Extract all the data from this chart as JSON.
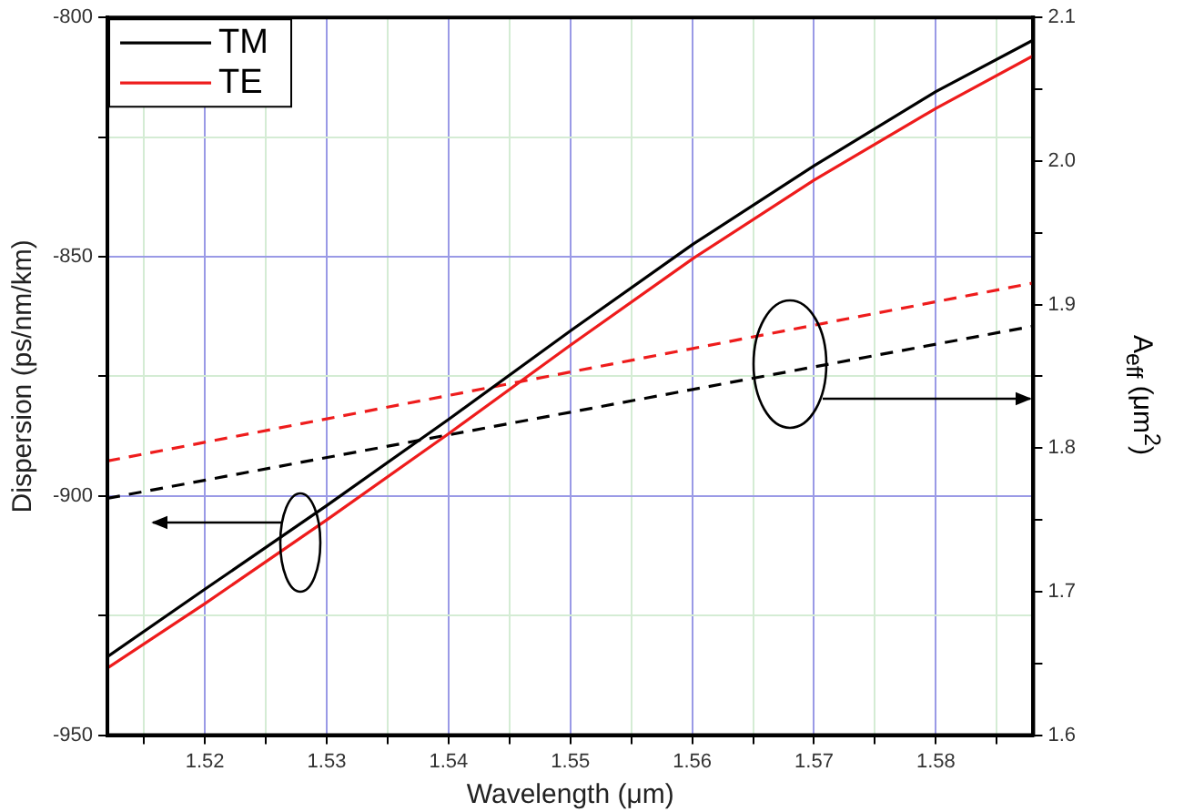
{
  "chart_data": {
    "type": "line",
    "xlabel": "Wavelength (μm)",
    "ylabel": "Dispersion (ps/nm/km)",
    "y2label": "A$_{eff}$ (μm$^{2}$)",
    "xlim": [
      1.512,
      1.588
    ],
    "xticks": [
      {
        "value": 1.515,
        "label": null
      },
      1.52,
      {
        "value": 1.525,
        "label": null
      },
      1.53,
      {
        "value": 1.535,
        "label": null
      },
      1.54,
      {
        "value": 1.545,
        "label": null
      },
      1.55,
      {
        "value": 1.555,
        "label": null
      },
      1.56,
      {
        "value": 1.565,
        "label": null
      },
      1.57,
      {
        "value": 1.575,
        "label": null
      },
      1.58,
      {
        "value": 1.585,
        "label": null
      }
    ],
    "ylim": [
      -950,
      -800
    ],
    "yticks": [
      -950,
      {
        "value": -925,
        "label": null
      },
      -900,
      {
        "value": -875,
        "label": null
      },
      -850,
      {
        "value": -825,
        "label": null
      },
      -800
    ],
    "y2lim": [
      1.6,
      2.1
    ],
    "y2ticks": [
      1.6,
      {
        "value": 1.65,
        "label": null
      },
      1.7,
      {
        "value": 1.75,
        "label": null
      },
      1.8,
      {
        "value": 1.85,
        "label": null
      },
      1.9,
      {
        "value": 1.95,
        "label": null
      },
      {
        "value": 2,
        "label": "2.0"
      },
      {
        "value": 2.05,
        "label": null
      },
      2.1
    ],
    "grid": true,
    "legend": "top left",
    "marker": "none",
    "series": [
      {
        "name": "TM",
        "color": "#000000",
        "line_style": "solid",
        "x": [
          1.512,
          1.52,
          1.53,
          1.54,
          1.55,
          1.56,
          1.57,
          1.58,
          1.588
        ],
        "values": [
          -933.6,
          -919.5,
          -902,
          -884,
          -865.5,
          -847.5,
          -831,
          -815.5,
          -804.7
        ]
      },
      {
        "name": "TE",
        "color": "#ee1c1c",
        "line_style": "solid",
        "x": [
          1.512,
          1.52,
          1.53,
          1.54,
          1.55,
          1.56,
          1.57,
          1.58,
          1.588
        ],
        "values": [
          -936,
          -922.5,
          -905,
          -887,
          -868.5,
          -850.5,
          -834,
          -819,
          -808
        ]
      },
      {
        "color": "#ee1c1c",
        "line_style": "dashed",
        "axis": "y2",
        "x": [
          1.512,
          1.55,
          1.588
        ],
        "values": [
          1.791,
          1.853,
          1.915
        ]
      },
      {
        "color": "#000000",
        "line_style": "dashed",
        "axis": "y2",
        "x": [
          1.512,
          1.55,
          1.588
        ],
        "values": [
          1.765,
          1.825,
          1.885
        ]
      }
    ]
  }
}
